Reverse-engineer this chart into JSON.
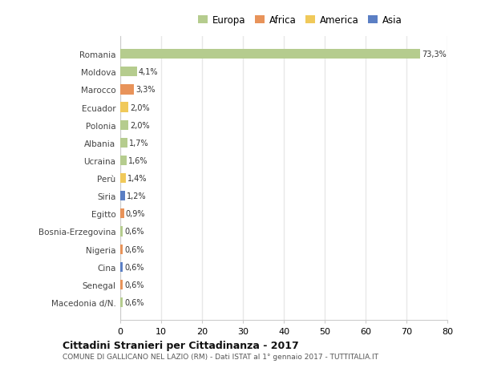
{
  "countries": [
    "Romania",
    "Moldova",
    "Marocco",
    "Ecuador",
    "Polonia",
    "Albania",
    "Ucraina",
    "Perù",
    "Siria",
    "Egitto",
    "Bosnia-Erzegovina",
    "Nigeria",
    "Cina",
    "Senegal",
    "Macedonia d/N."
  ],
  "values": [
    73.3,
    4.1,
    3.3,
    2.0,
    2.0,
    1.7,
    1.6,
    1.4,
    1.2,
    0.9,
    0.6,
    0.6,
    0.6,
    0.6,
    0.6
  ],
  "labels": [
    "73,3%",
    "4,1%",
    "3,3%",
    "2,0%",
    "2,0%",
    "1,7%",
    "1,6%",
    "1,4%",
    "1,2%",
    "0,9%",
    "0,6%",
    "0,6%",
    "0,6%",
    "0,6%",
    "0,6%"
  ],
  "colors": [
    "#b5cc8e",
    "#b5cc8e",
    "#e8935a",
    "#f0c95a",
    "#b5cc8e",
    "#b5cc8e",
    "#b5cc8e",
    "#f0c95a",
    "#5b7fc4",
    "#e8935a",
    "#b5cc8e",
    "#e8935a",
    "#5b7fc4",
    "#e8935a",
    "#b5cc8e"
  ],
  "legend": [
    {
      "label": "Europa",
      "color": "#b5cc8e"
    },
    {
      "label": "Africa",
      "color": "#e8935a"
    },
    {
      "label": "America",
      "color": "#f0c95a"
    },
    {
      "label": "Asia",
      "color": "#5b7fc4"
    }
  ],
  "xlim": [
    0,
    80
  ],
  "xticks": [
    0,
    10,
    20,
    30,
    40,
    50,
    60,
    70,
    80
  ],
  "title1": "Cittadini Stranieri per Cittadinanza - 2017",
  "title2": "COMUNE DI GALLICANO NEL LAZIO (RM) - Dati ISTAT al 1° gennaio 2017 - TUTTITALIA.IT",
  "bg_color": "#ffffff",
  "grid_color": "#e8e8e8",
  "bar_height": 0.55
}
